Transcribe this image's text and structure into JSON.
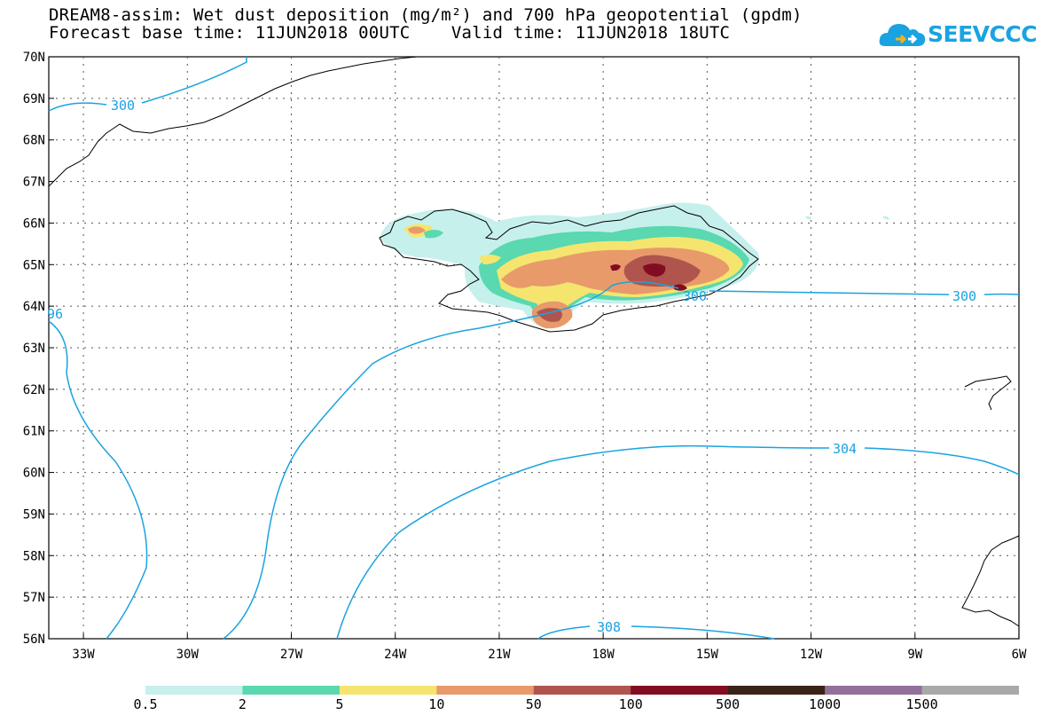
{
  "title": {
    "line1": "DREAM8-assim: Wet dust deposition (mg/m²) and 700 hPa geopotential (gpdm)",
    "line2": "Forecast base time: 11JUN2018 00UTC    Valid time: 11JUN2018 18UTC"
  },
  "logo": {
    "text": "SEEVCCC",
    "icon": "cloud-icon",
    "color": "#1aa3e0"
  },
  "map": {
    "lat_labels": [
      "70N",
      "69N",
      "68N",
      "67N",
      "66N",
      "65N",
      "64N",
      "63N",
      "62N",
      "61N",
      "60N",
      "59N",
      "58N",
      "57N",
      "56N"
    ],
    "lon_labels": [
      "33W",
      "30W",
      "27W",
      "24W",
      "21W",
      "18W",
      "15W",
      "12W",
      "9W",
      "6W"
    ],
    "contour_labels": [
      "300",
      "300",
      "300",
      "304",
      "308",
      "96"
    ],
    "contour_color": "#1aa3e0"
  },
  "legend": {
    "colors": [
      "#c6f0ec",
      "#5ad8b0",
      "#f5e56f",
      "#e89a6b",
      "#b0554d",
      "#820c22",
      "#3a2418",
      "#93709c",
      "#a9a9a9"
    ],
    "labels": [
      "0.5",
      "2",
      "5",
      "10",
      "50",
      "100",
      "500",
      "1000",
      "1500"
    ]
  }
}
